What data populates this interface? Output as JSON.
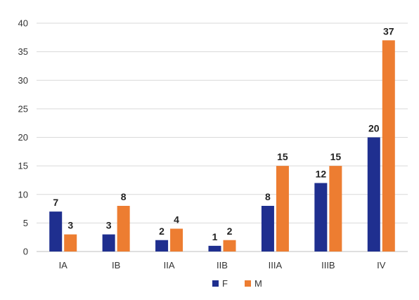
{
  "chart_data": {
    "type": "bar",
    "categories": [
      "IA",
      "IB",
      "IIA",
      "IIB",
      "IIIA",
      "IIIB",
      "IV"
    ],
    "series": [
      {
        "name": "F",
        "values": [
          7,
          3,
          2,
          1,
          8,
          12,
          20
        ],
        "color": "#1f2f8f"
      },
      {
        "name": "M",
        "values": [
          3,
          8,
          4,
          2,
          15,
          15,
          37
        ],
        "color": "#ed7d31"
      }
    ],
    "ylim": [
      0,
      40
    ],
    "yticks": [
      0,
      5,
      10,
      15,
      20,
      25,
      30,
      35,
      40
    ],
    "grid": true,
    "legend": "bottom",
    "data_labels": true
  }
}
